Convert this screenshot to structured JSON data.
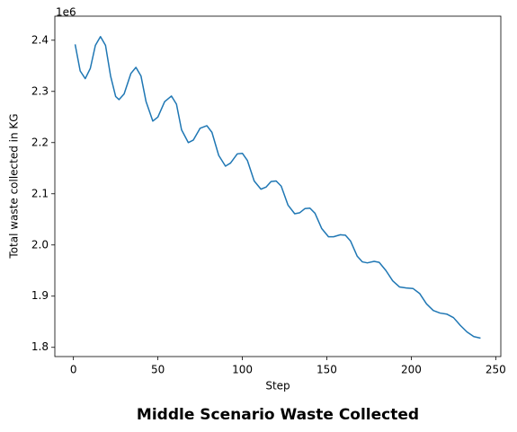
{
  "chart_data": {
    "type": "line",
    "title": "Middle Scenario Waste Collected",
    "xlabel": "Step",
    "ylabel": "Total waste collected in KG",
    "y_offset_label": "1e6",
    "x": [
      1,
      4,
      7,
      10,
      13,
      16,
      19,
      22,
      25,
      27,
      30,
      34,
      37,
      40,
      43,
      47,
      50,
      54,
      58,
      61,
      64,
      68,
      71,
      75,
      79,
      82,
      86,
      90,
      93,
      97,
      100,
      103,
      107,
      111,
      114,
      117,
      120,
      123,
      127,
      131,
      134,
      137,
      140,
      143,
      147,
      151,
      154,
      158,
      161,
      164,
      168,
      171,
      174,
      178,
      181,
      185,
      189,
      193,
      197,
      201,
      205,
      209,
      213,
      217,
      221,
      225,
      229,
      233,
      237,
      241
    ],
    "series": [
      {
        "name": "Total waste collected",
        "color": "#1f77b4",
        "values": [
          2.392,
          2.34,
          2.325,
          2.345,
          2.39,
          2.407,
          2.39,
          2.33,
          2.29,
          2.284,
          2.295,
          2.335,
          2.347,
          2.33,
          2.28,
          2.242,
          2.25,
          2.28,
          2.291,
          2.275,
          2.225,
          2.2,
          2.205,
          2.228,
          2.233,
          2.22,
          2.175,
          2.154,
          2.16,
          2.178,
          2.179,
          2.165,
          2.125,
          2.109,
          2.113,
          2.124,
          2.125,
          2.115,
          2.078,
          2.061,
          2.063,
          2.071,
          2.072,
          2.062,
          2.032,
          2.016,
          2.016,
          2.02,
          2.019,
          2.008,
          1.978,
          1.967,
          1.965,
          1.968,
          1.966,
          1.95,
          1.93,
          1.918,
          1.916,
          1.915,
          1.905,
          1.885,
          1.872,
          1.867,
          1.865,
          1.858,
          1.843,
          1.83,
          1.821,
          1.818
        ]
      }
    ],
    "xlim": [
      -11,
      253
    ],
    "ylim": [
      1.782,
      2.447
    ],
    "xticks": [
      0,
      50,
      100,
      150,
      200,
      250
    ],
    "yticks": [
      1.8,
      1.9,
      {
        "value": 2,
        "label": "2.0"
      },
      2.1,
      2.2,
      2.3,
      2.4
    ]
  }
}
